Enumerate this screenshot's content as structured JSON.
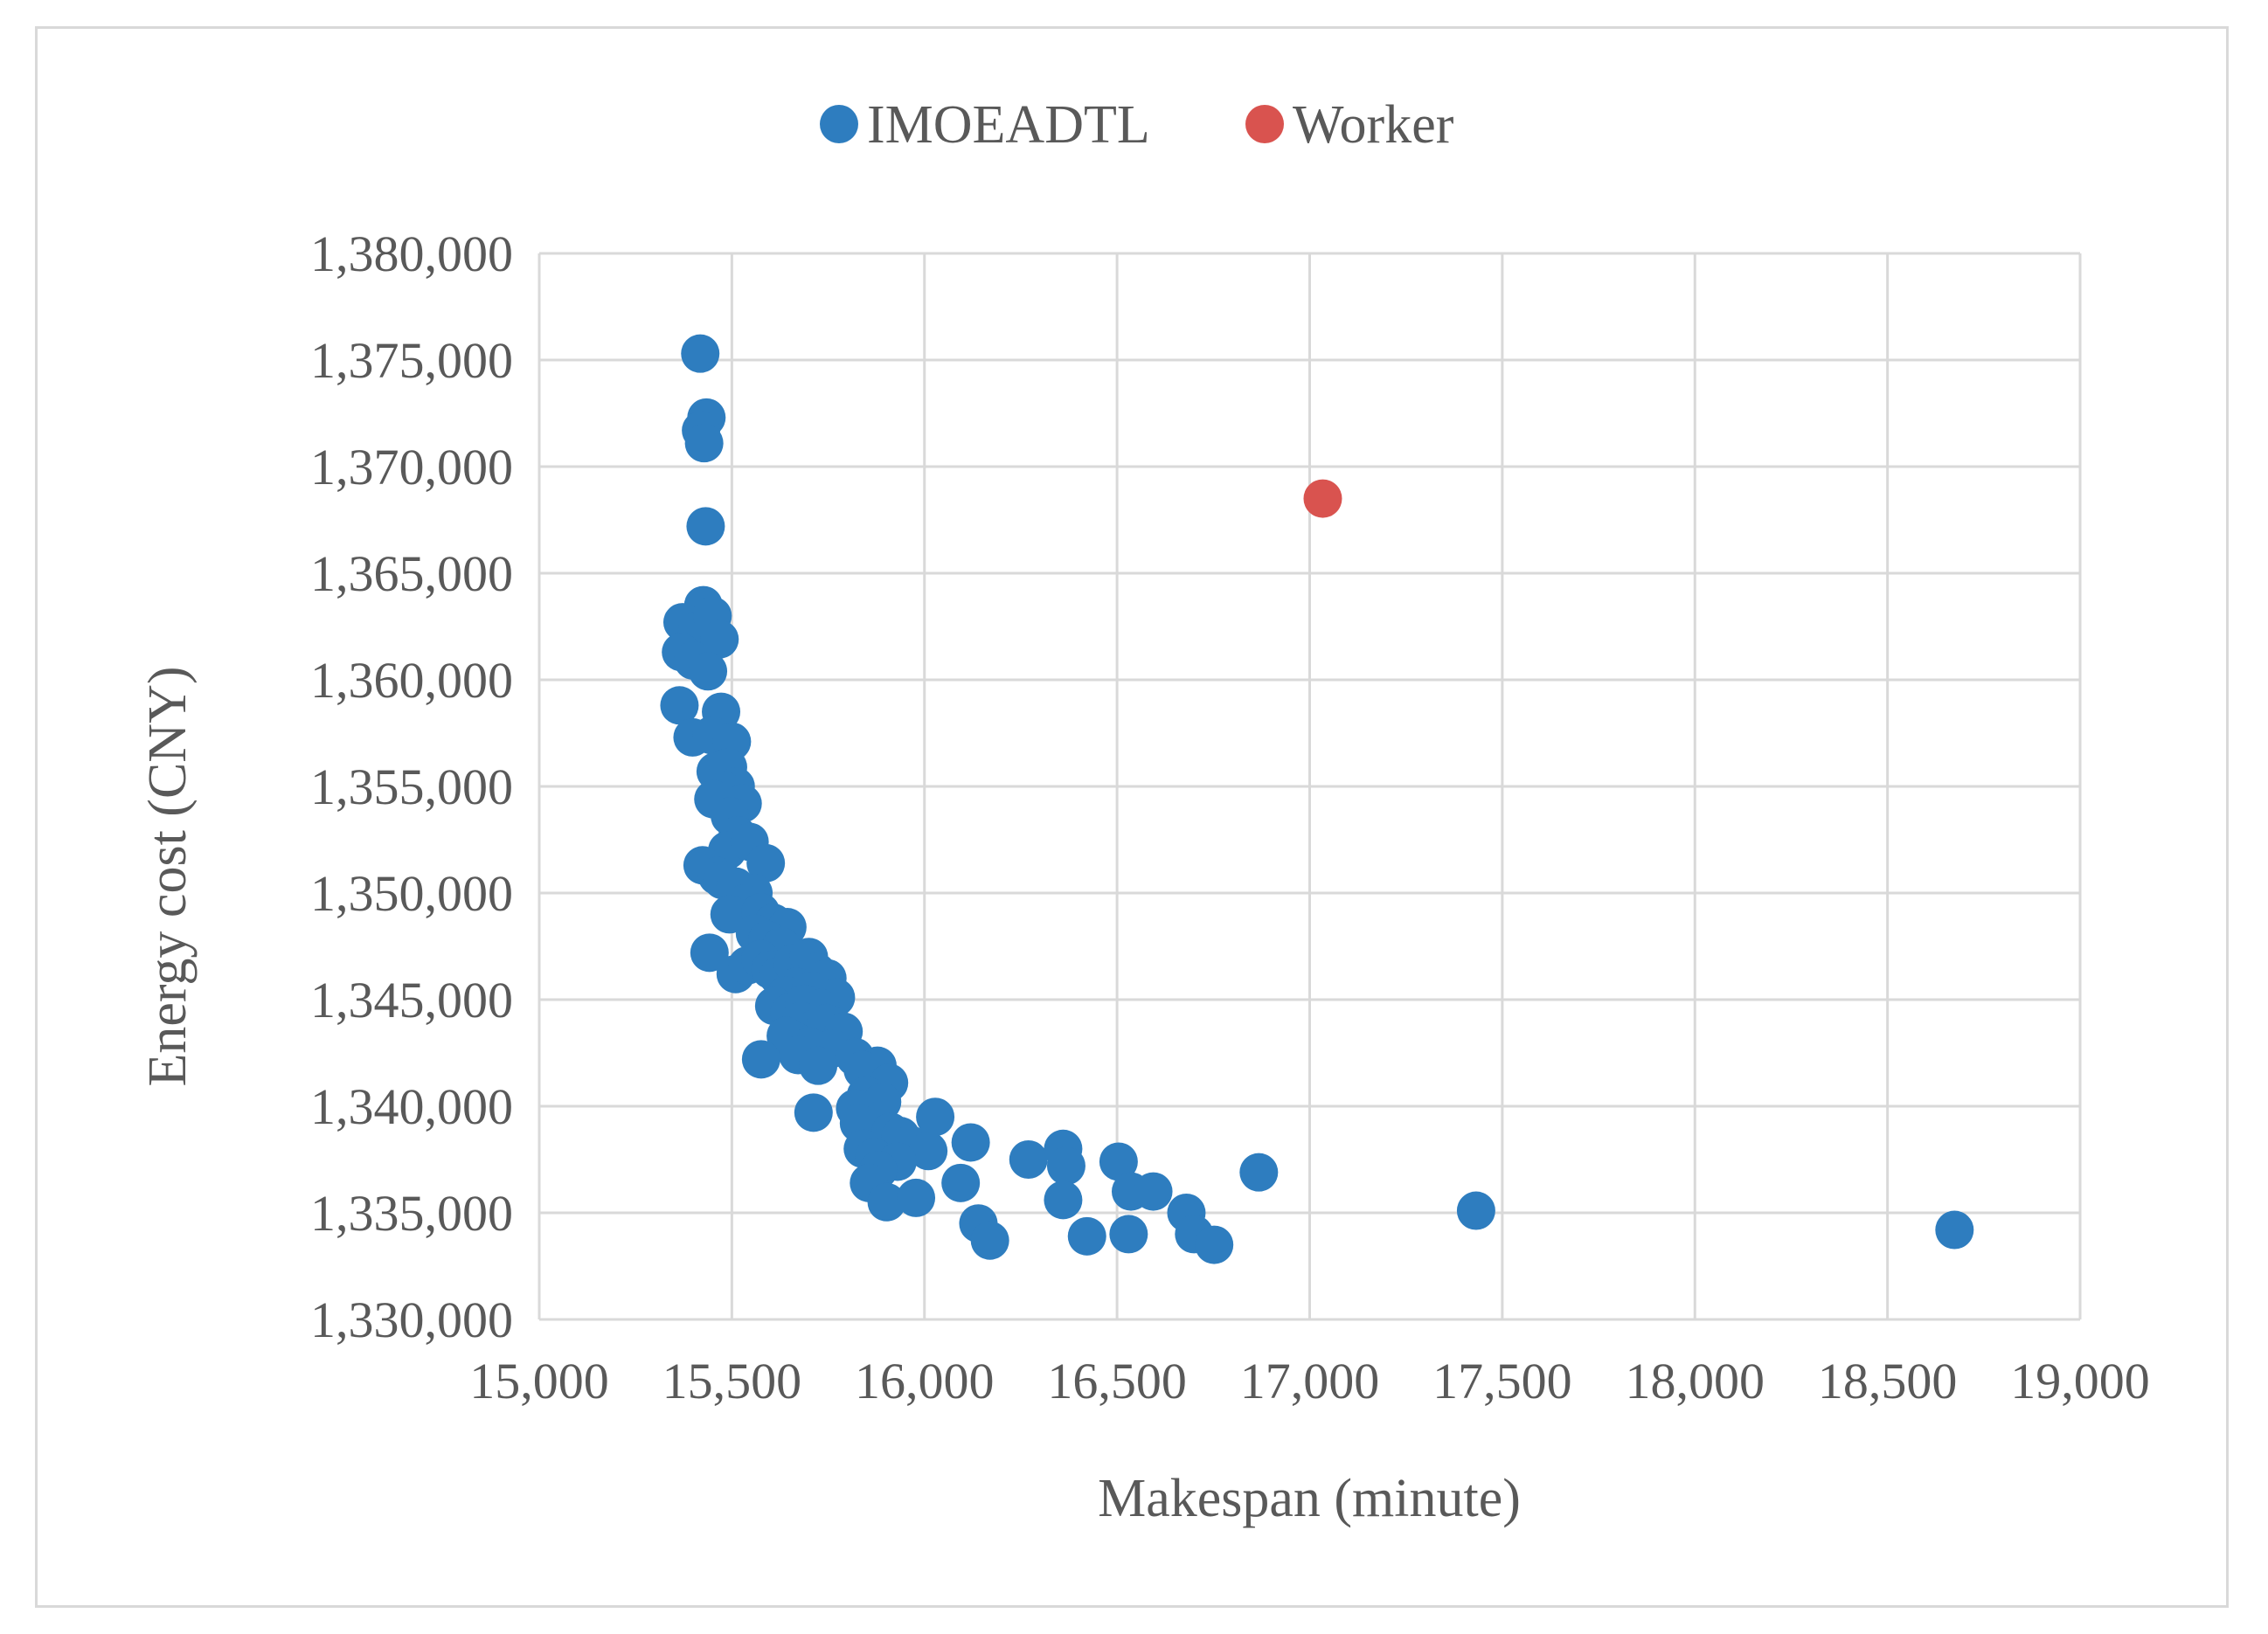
{
  "chart_data": {
    "type": "scatter",
    "xlabel": "Makespan (minute)",
    "ylabel": "Energy cost (CNY)",
    "xlim": [
      15000,
      19000
    ],
    "ylim": [
      1330000,
      1380000
    ],
    "x_ticks": [
      "15,000",
      "15,500",
      "16,000",
      "16,500",
      "17,000",
      "17,500",
      "18,000",
      "18,500",
      "19,000"
    ],
    "y_ticks": [
      "1,330,000",
      "1,335,000",
      "1,340,000",
      "1,345,000",
      "1,350,000",
      "1,355,000",
      "1,360,000",
      "1,365,000",
      "1,370,000",
      "1,375,000",
      "1,380,000"
    ],
    "grid": true,
    "legend_position": "top",
    "series": [
      {
        "name": "IMOEADTL",
        "color": "#2e7dbf",
        "points": [
          [
            15418,
            1375300
          ],
          [
            15434,
            1372300
          ],
          [
            15420,
            1371700
          ],
          [
            15428,
            1371100
          ],
          [
            15432,
            1367200
          ],
          [
            15426,
            1363500
          ],
          [
            15372,
            1362700
          ],
          [
            15410,
            1362300
          ],
          [
            15450,
            1363000
          ],
          [
            15468,
            1361900
          ],
          [
            15368,
            1361300
          ],
          [
            15400,
            1360900
          ],
          [
            15438,
            1360400
          ],
          [
            15364,
            1358800
          ],
          [
            15472,
            1358500
          ],
          [
            15398,
            1357300
          ],
          [
            15448,
            1357400
          ],
          [
            15500,
            1357100
          ],
          [
            15458,
            1355700
          ],
          [
            15490,
            1355900
          ],
          [
            15510,
            1355000
          ],
          [
            15480,
            1354800
          ],
          [
            15452,
            1354400
          ],
          [
            15528,
            1354200
          ],
          [
            15495,
            1353600
          ],
          [
            15515,
            1352700
          ],
          [
            15488,
            1352000
          ],
          [
            15546,
            1352400
          ],
          [
            15424,
            1351300
          ],
          [
            15462,
            1350800
          ],
          [
            15588,
            1351400
          ],
          [
            15476,
            1350600
          ],
          [
            15510,
            1350300
          ],
          [
            15556,
            1350000
          ],
          [
            15532,
            1349500
          ],
          [
            15494,
            1349000
          ],
          [
            15575,
            1349100
          ],
          [
            15608,
            1348600
          ],
          [
            15644,
            1348400
          ],
          [
            15560,
            1348100
          ],
          [
            15592,
            1347800
          ],
          [
            15442,
            1347200
          ],
          [
            15628,
            1347500
          ],
          [
            15510,
            1346200
          ],
          [
            15540,
            1346600
          ],
          [
            15574,
            1346900
          ],
          [
            15600,
            1346400
          ],
          [
            15620,
            1346100
          ],
          [
            15658,
            1346700
          ],
          [
            15700,
            1347000
          ],
          [
            15720,
            1346300
          ],
          [
            15748,
            1346000
          ],
          [
            15668,
            1345600
          ],
          [
            15640,
            1345200
          ],
          [
            15704,
            1345400
          ],
          [
            15770,
            1345100
          ],
          [
            15610,
            1344700
          ],
          [
            15650,
            1344400
          ],
          [
            15688,
            1344800
          ],
          [
            15730,
            1344600
          ],
          [
            15680,
            1344000
          ],
          [
            15712,
            1343600
          ],
          [
            15745,
            1343900
          ],
          [
            15790,
            1343500
          ],
          [
            15660,
            1343100
          ],
          [
            15640,
            1343300
          ],
          [
            15700,
            1342800
          ],
          [
            15760,
            1342700
          ],
          [
            15672,
            1342400
          ],
          [
            15724,
            1341900
          ],
          [
            15576,
            1342200
          ],
          [
            15820,
            1342300
          ],
          [
            15878,
            1341900
          ],
          [
            15840,
            1341700
          ],
          [
            15908,
            1341100
          ],
          [
            15848,
            1340500
          ],
          [
            15890,
            1340200
          ],
          [
            15820,
            1339900
          ],
          [
            15712,
            1339700
          ],
          [
            15830,
            1339200
          ],
          [
            15912,
            1338800
          ],
          [
            15938,
            1338600
          ],
          [
            16028,
            1339500
          ],
          [
            15962,
            1338200
          ],
          [
            16010,
            1337900
          ],
          [
            16120,
            1338300
          ],
          [
            15840,
            1338000
          ],
          [
            15870,
            1337600
          ],
          [
            15930,
            1337400
          ],
          [
            15880,
            1337000
          ],
          [
            15856,
            1336400
          ],
          [
            15902,
            1335500
          ],
          [
            15978,
            1335700
          ],
          [
            16094,
            1336400
          ],
          [
            16270,
            1337500
          ],
          [
            16360,
            1338000
          ],
          [
            16368,
            1337200
          ],
          [
            16504,
            1337400
          ],
          [
            16536,
            1336000
          ],
          [
            16594,
            1336000
          ],
          [
            16868,
            1336900
          ],
          [
            16360,
            1335600
          ],
          [
            16680,
            1335000
          ],
          [
            16140,
            1334500
          ],
          [
            16170,
            1333700
          ],
          [
            16422,
            1333900
          ],
          [
            16530,
            1334000
          ],
          [
            16700,
            1334000
          ],
          [
            16752,
            1333500
          ],
          [
            17432,
            1335100
          ],
          [
            18674,
            1334200
          ]
        ]
      },
      {
        "name": "Worker",
        "color": "#d9534f",
        "points": [
          [
            17034,
            1368500
          ]
        ]
      }
    ]
  }
}
